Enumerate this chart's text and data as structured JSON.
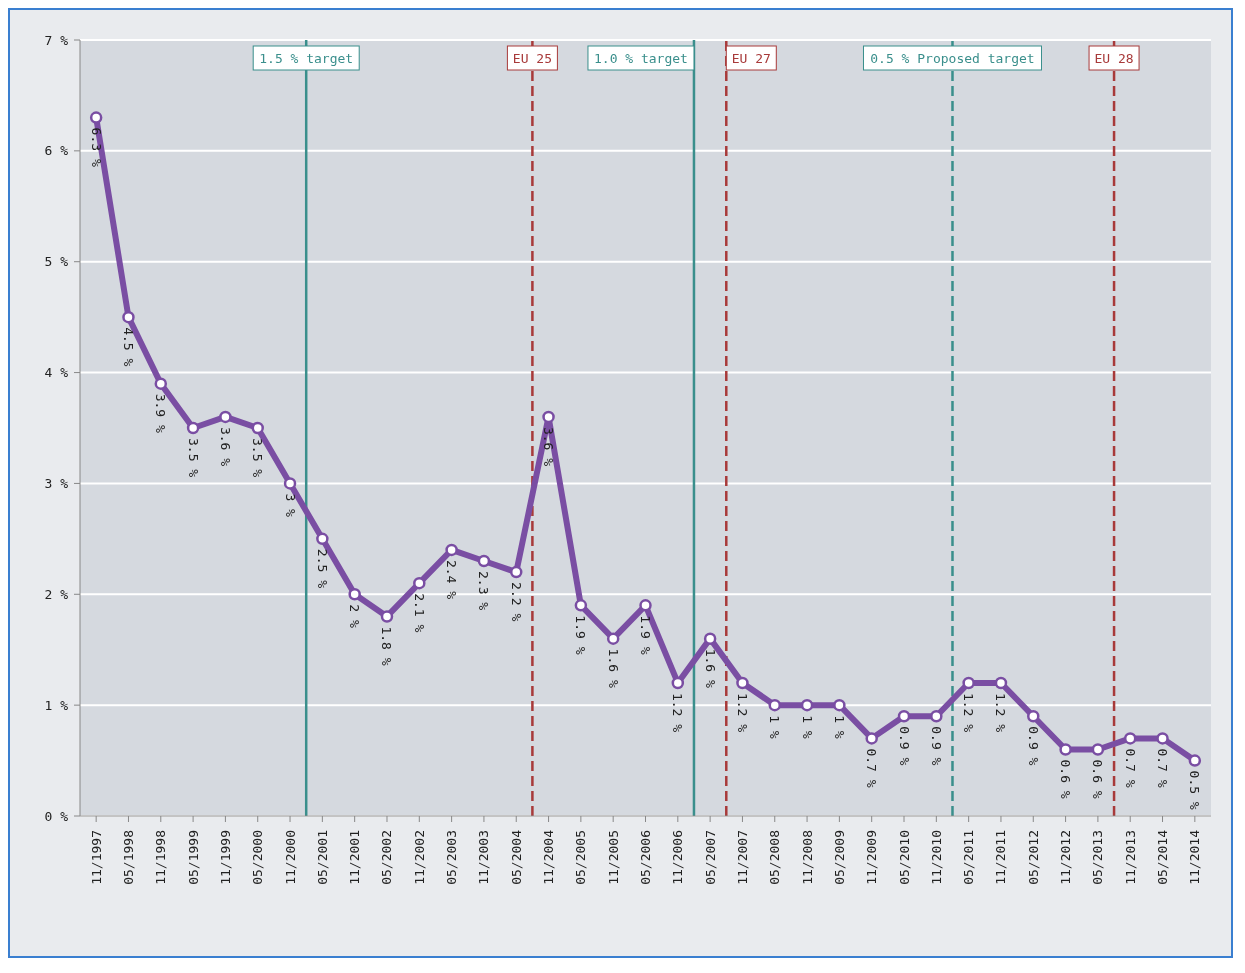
{
  "chart_data": {
    "type": "line",
    "x": [
      "1997-11",
      "1998-05",
      "1998-11",
      "1999-05",
      "1999-11",
      "2000-05",
      "2000-11",
      "2001-05",
      "2001-11",
      "2002-05",
      "2002-11",
      "2003-05",
      "2003-11",
      "2004-05",
      "2004-11",
      "2005-05",
      "2005-11",
      "2006-05",
      "2006-11",
      "2007-05",
      "2007-11",
      "2008-05",
      "2008-11",
      "2009-05",
      "2009-11",
      "2010-05",
      "2010-11",
      "2011-05",
      "2011-11",
      "2012-05",
      "2012-11",
      "2013-05",
      "2013-11",
      "2014-05",
      "2014-11"
    ],
    "series": [
      {
        "color": "#7a4ea3",
        "values": [
          6.3,
          4.5,
          3.9,
          3.5,
          3.6,
          3.5,
          3,
          2.5,
          2,
          1.8,
          2.1,
          2.4,
          2.3,
          2.2,
          3.6,
          1.9,
          1.6,
          1.9,
          1.2,
          1.6,
          1.2,
          1,
          1,
          1,
          0.7,
          0.9,
          0.9,
          1.2,
          1.2,
          0.9,
          0.6,
          0.6,
          0.7,
          0.7,
          0.5
        ],
        "value_labels": [
          "6.3 %",
          "4.5 %",
          "3.9 %",
          "3.5 %",
          "3.6 %",
          "3.5 %",
          "3 %",
          "2.5 %",
          "2 %",
          "1.8 %",
          "2.1 %",
          "2.4 %",
          "2.3 %",
          "2.2 %",
          "3.6 %",
          "1.9 %",
          "1.6 %",
          "1.9 %",
          "1.2 %",
          "1.6 %",
          "1.2 %",
          "1 %",
          "1 %",
          "1 %",
          "0.7 %",
          "0.9 %",
          "0.9 %",
          "1.2 %",
          "1.2 %",
          "0.9 %",
          "0.6 %",
          "0.6 %",
          "0.7 %",
          "0.7 %",
          "0.5 %"
        ]
      }
    ],
    "xlim": [
      "1997-08",
      "2015-02"
    ],
    "xticks": [
      {
        "value": "1997-11",
        "label": "11/1997"
      },
      {
        "value": "1998-05",
        "label": "05/1998"
      },
      {
        "value": "1998-11",
        "label": "11/1998"
      },
      {
        "value": "1999-05",
        "label": "05/1999"
      },
      {
        "value": "1999-11",
        "label": "11/1999"
      },
      {
        "value": "2000-05",
        "label": "05/2000"
      },
      {
        "value": "2000-11",
        "label": "11/2000"
      },
      {
        "value": "2001-05",
        "label": "05/2001"
      },
      {
        "value": "2001-11",
        "label": "11/2001"
      },
      {
        "value": "2002-05",
        "label": "05/2002"
      },
      {
        "value": "2002-11",
        "label": "11/2002"
      },
      {
        "value": "2003-05",
        "label": "05/2003"
      },
      {
        "value": "2003-11",
        "label": "11/2003"
      },
      {
        "value": "2004-05",
        "label": "05/2004"
      },
      {
        "value": "2004-11",
        "label": "11/2004"
      },
      {
        "value": "2005-05",
        "label": "05/2005"
      },
      {
        "value": "2005-11",
        "label": "11/2005"
      },
      {
        "value": "2006-05",
        "label": "05/2006"
      },
      {
        "value": "2006-11",
        "label": "11/2006"
      },
      {
        "value": "2007-05",
        "label": "05/2007"
      },
      {
        "value": "2007-11",
        "label": "11/2007"
      },
      {
        "value": "2008-05",
        "label": "05/2008"
      },
      {
        "value": "2008-11",
        "label": "11/2008"
      },
      {
        "value": "2009-05",
        "label": "05/2009"
      },
      {
        "value": "2009-11",
        "label": "11/2009"
      },
      {
        "value": "2010-05",
        "label": "05/2010"
      },
      {
        "value": "2010-11",
        "label": "11/2010"
      },
      {
        "value": "2011-05",
        "label": "05/2011"
      },
      {
        "value": "2011-11",
        "label": "11/2011"
      },
      {
        "value": "2012-05",
        "label": "05/2012"
      },
      {
        "value": "2012-11",
        "label": "11/2012"
      },
      {
        "value": "2013-05",
        "label": "05/2013"
      },
      {
        "value": "2013-11",
        "label": "11/2013"
      },
      {
        "value": "2014-05",
        "label": "05/2014"
      },
      {
        "value": "2014-11",
        "label": "11/2014"
      }
    ],
    "ylim": [
      0,
      7
    ],
    "yticks": [
      {
        "value": 0,
        "label": "0 %"
      },
      {
        "value": 1,
        "label": "1 %"
      },
      {
        "value": 2,
        "label": "2 %"
      },
      {
        "value": 3,
        "label": "3 %"
      },
      {
        "value": 4,
        "label": "4 %"
      },
      {
        "value": 5,
        "label": "5 %"
      },
      {
        "value": 6,
        "label": "6 %"
      },
      {
        "value": 7,
        "label": "7 %"
      }
    ],
    "ref_lines": [
      {
        "axis": "x",
        "value": "2001-02",
        "label": "1.5 % target",
        "color": "#3a8f8c",
        "line_style": "solid"
      },
      {
        "axis": "x",
        "value": "2004-08",
        "label": "EU 25",
        "color": "#a83a3a",
        "line_style": "dashed"
      },
      {
        "axis": "x",
        "value": "2007-02",
        "label": "1.0 % target",
        "color": "#3a8f8c",
        "line_style": "solid"
      },
      {
        "axis": "x",
        "value": "2007-08",
        "label": "EU 27",
        "color": "#a83a3a",
        "line_style": "dashed"
      },
      {
        "axis": "x",
        "value": "2011-02",
        "label": "0.5 % Proposed target",
        "color": "#3a8f8c",
        "line_style": "dashed"
      },
      {
        "axis": "x",
        "value": "2013-08",
        "label": "EU 28",
        "color": "#a83a3a",
        "line_style": "dashed"
      }
    ],
    "grid": "y",
    "marker": "circle",
    "line_style": "solid"
  }
}
